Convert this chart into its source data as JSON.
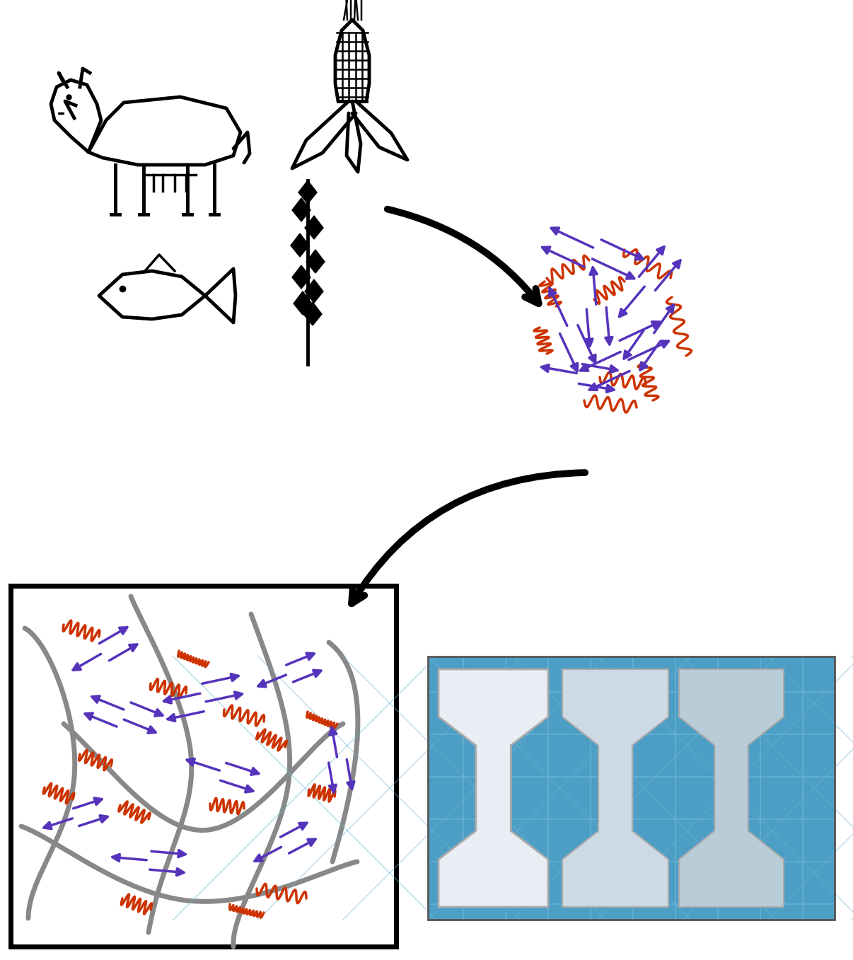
{
  "background_color": "#ffffff",
  "arrow_color": "#000000",
  "protein_blue": "#5533bb",
  "protein_red": "#cc3300",
  "gray_chain": "#888888",
  "plastic_blue": "#5599cc",
  "figsize": [
    12.06,
    13.57
  ],
  "dpi": 100
}
